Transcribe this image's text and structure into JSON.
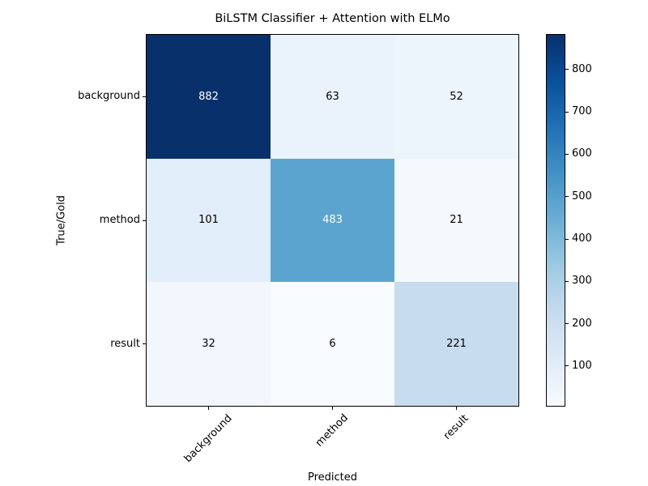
{
  "figure": {
    "background": "#ffffff",
    "spine_color": "#000000"
  },
  "chart_data": {
    "type": "heatmap",
    "title": "BiLSTM Classifier + Attention with ELMo",
    "xlabel": "Predicted",
    "ylabel": "True/Gold",
    "x_categories": [
      "background",
      "method",
      "result"
    ],
    "y_categories": [
      "background",
      "method",
      "result"
    ],
    "matrix": [
      [
        882,
        63,
        52
      ],
      [
        101,
        483,
        21
      ],
      [
        32,
        6,
        221
      ]
    ],
    "vmin": 6,
    "vmax": 882,
    "grid": false,
    "colorbar": {
      "position": "right",
      "ticks": [
        100,
        200,
        300,
        400,
        500,
        600,
        700,
        800
      ],
      "colormap": "Blues",
      "stops": [
        "#f7fbff",
        "#deebf7",
        "#c6dbef",
        "#9ecae1",
        "#6baed6",
        "#4292c6",
        "#2171b5",
        "#08519c",
        "#08306b"
      ]
    },
    "annotation_text_colors": {
      "light": "#ffffff",
      "dark": "#000000"
    }
  }
}
